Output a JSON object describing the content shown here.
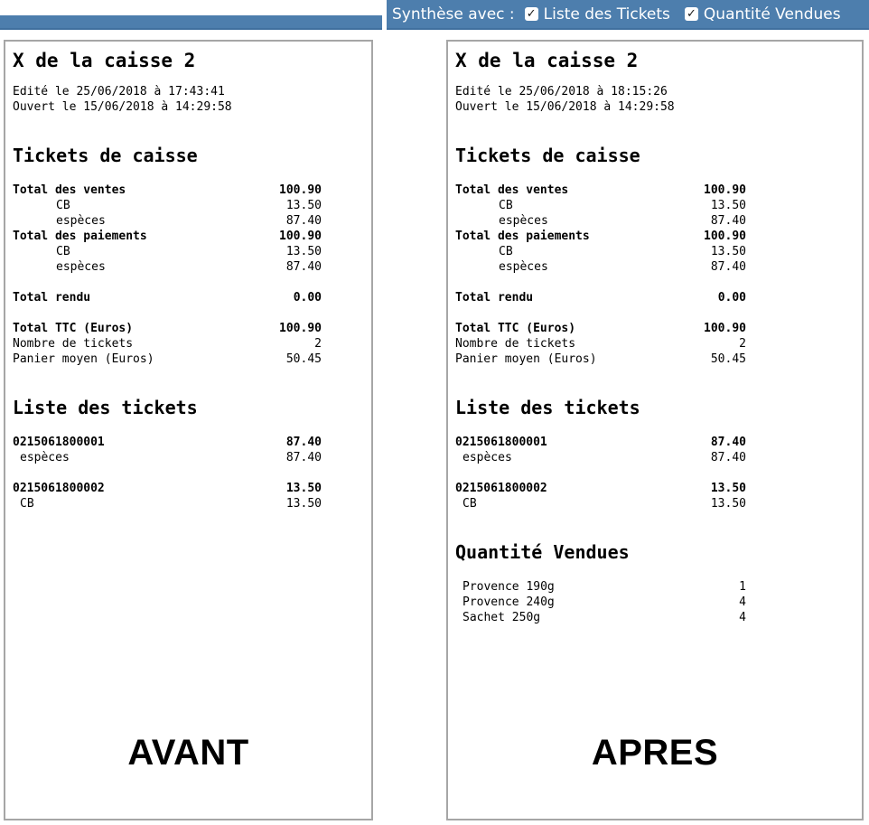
{
  "toolbar": {
    "label": "Synthèse avec :",
    "options": [
      {
        "label": "Liste des Tickets",
        "checked": true
      },
      {
        "label": "Quantité Vendues",
        "checked": true
      }
    ]
  },
  "colors": {
    "toolbar_blue": "#4d7ead",
    "toolbar_border": "#3f6f9e",
    "panel_border": "#a6a6a6"
  },
  "panels": [
    {
      "id": "avant",
      "caption": "AVANT",
      "title": "X de la caisse 2",
      "edited_line": "Edité le 25/06/2018 à 17:43:41",
      "opened_line": "Ouvert le 15/06/2018 à 14:29:58",
      "sections": [
        {
          "heading": "Tickets de caisse",
          "rows": [
            {
              "label": "Total des ventes",
              "value": "100.90",
              "bold": true
            },
            {
              "label": "CB",
              "value": "13.50",
              "indent": 6
            },
            {
              "label": "espèces",
              "value": "87.40",
              "indent": 6
            },
            {
              "label": "Total des paiements",
              "value": "100.90",
              "bold": true
            },
            {
              "label": "CB",
              "value": "13.50",
              "indent": 6
            },
            {
              "label": "espèces",
              "value": "87.40",
              "indent": 6
            },
            {
              "label": "Total rendu",
              "value": "0.00",
              "bold": true,
              "space_before": true
            },
            {
              "label": "Total TTC (Euros)",
              "value": "100.90",
              "bold": true,
              "space_before": true
            },
            {
              "label": "Nombre de tickets",
              "value": "2"
            },
            {
              "label": "Panier moyen (Euros)",
              "value": "50.45"
            }
          ]
        },
        {
          "heading": "Liste des tickets",
          "rows": [
            {
              "label": "0215061800001",
              "value": "87.40",
              "bold": true
            },
            {
              "label": "espèces",
              "value": "87.40",
              "indent": 1
            },
            {
              "label": "0215061800002",
              "value": "13.50",
              "bold": true,
              "space_before": true
            },
            {
              "label": "CB",
              "value": "13.50",
              "indent": 1
            }
          ]
        }
      ]
    },
    {
      "id": "apres",
      "caption": "APRES",
      "title": "X de la caisse 2",
      "edited_line": "Edité le 25/06/2018 à 18:15:26",
      "opened_line": "Ouvert le 15/06/2018 à 14:29:58",
      "sections": [
        {
          "heading": "Tickets de caisse",
          "rows": [
            {
              "label": "Total des ventes",
              "value": "100.90",
              "bold": true
            },
            {
              "label": "CB",
              "value": "13.50",
              "indent": 6
            },
            {
              "label": "espèces",
              "value": "87.40",
              "indent": 6
            },
            {
              "label": "Total des paiements",
              "value": "100.90",
              "bold": true
            },
            {
              "label": "CB",
              "value": "13.50",
              "indent": 6
            },
            {
              "label": "espèces",
              "value": "87.40",
              "indent": 6
            },
            {
              "label": "Total rendu",
              "value": "0.00",
              "bold": true,
              "space_before": true
            },
            {
              "label": "Total TTC (Euros)",
              "value": "100.90",
              "bold": true,
              "space_before": true
            },
            {
              "label": "Nombre de tickets",
              "value": "2"
            },
            {
              "label": "Panier moyen (Euros)",
              "value": "50.45"
            }
          ]
        },
        {
          "heading": "Liste des tickets",
          "rows": [
            {
              "label": "0215061800001",
              "value": "87.40",
              "bold": true
            },
            {
              "label": "espèces",
              "value": "87.40",
              "indent": 1
            },
            {
              "label": "0215061800002",
              "value": "13.50",
              "bold": true,
              "space_before": true
            },
            {
              "label": "CB",
              "value": "13.50",
              "indent": 1
            }
          ]
        },
        {
          "heading": "Quantité Vendues",
          "rows": [
            {
              "label": "Provence 190g",
              "value": "1",
              "indent": 1
            },
            {
              "label": "Provence 240g",
              "value": "4",
              "indent": 1
            },
            {
              "label": "Sachet 250g",
              "value": "4",
              "indent": 1
            }
          ]
        }
      ]
    }
  ]
}
